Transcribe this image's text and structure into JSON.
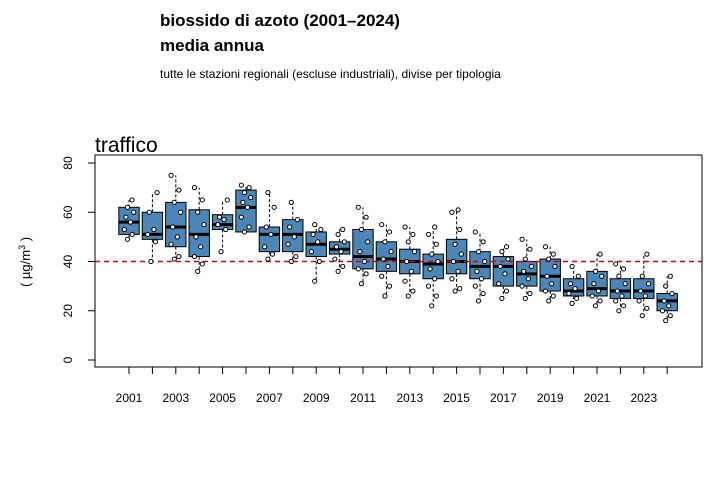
{
  "header": {
    "title_line1": "biossido di azoto (2001–2024)",
    "title_line2": "media annua",
    "subtitle": "tutte le stazioni regionali (escluse industriali), divise per tipologia"
  },
  "chart_data": {
    "type": "boxplot",
    "panel_title": "traffico",
    "ylabel": "( µg/m³ )",
    "ylabel_base": "( µg/m",
    "ylabel_sup": "3",
    "ylabel_end": " )",
    "ylim": [
      0,
      80
    ],
    "yticks": [
      0,
      20,
      40,
      60,
      80
    ],
    "xticks": [
      "2001",
      "2003",
      "2005",
      "2007",
      "2009",
      "2011",
      "2013",
      "2015",
      "2017",
      "2019",
      "2021",
      "2023"
    ],
    "reference_line": {
      "value": 40,
      "color": "#dd0000",
      "style": "dashed"
    },
    "box_color": "#4a86b8",
    "years": [
      2001,
      2002,
      2003,
      2004,
      2005,
      2006,
      2007,
      2008,
      2009,
      2010,
      2011,
      2012,
      2013,
      2014,
      2015,
      2016,
      2017,
      2018,
      2019,
      2020,
      2021,
      2022,
      2023,
      2024
    ],
    "boxes": [
      {
        "q1": 51,
        "median": 56,
        "q3": 62,
        "wlo": 49,
        "whi": 65
      },
      {
        "q1": 49,
        "median": 51,
        "q3": 60,
        "wlo": 40,
        "whi": 68
      },
      {
        "q1": 46,
        "median": 54,
        "q3": 64,
        "wlo": 41,
        "whi": 75
      },
      {
        "q1": 42,
        "median": 51,
        "q3": 61,
        "wlo": 36,
        "whi": 70
      },
      {
        "q1": 53,
        "median": 55,
        "q3": 59,
        "wlo": 44,
        "whi": 65
      },
      {
        "q1": 52,
        "median": 62,
        "q3": 69,
        "wlo": 52,
        "whi": 71
      },
      {
        "q1": 44,
        "median": 51,
        "q3": 54,
        "wlo": 41,
        "whi": 68
      },
      {
        "q1": 44,
        "median": 51,
        "q3": 57,
        "wlo": 40,
        "whi": 64
      },
      {
        "q1": 42,
        "median": 47,
        "q3": 52,
        "wlo": 32,
        "whi": 55
      },
      {
        "q1": 43,
        "median": 45,
        "q3": 48,
        "wlo": 36,
        "whi": 53
      },
      {
        "q1": 37,
        "median": 42,
        "q3": 53,
        "wlo": 31,
        "whi": 62
      },
      {
        "q1": 36,
        "median": 41,
        "q3": 48,
        "wlo": 26,
        "whi": 55
      },
      {
        "q1": 35,
        "median": 40,
        "q3": 45,
        "wlo": 26,
        "whi": 54
      },
      {
        "q1": 33,
        "median": 39,
        "q3": 43,
        "wlo": 22,
        "whi": 54
      },
      {
        "q1": 35,
        "median": 40,
        "q3": 49,
        "wlo": 28,
        "whi": 61
      },
      {
        "q1": 33,
        "median": 38,
        "q3": 44,
        "wlo": 24,
        "whi": 52
      },
      {
        "q1": 30,
        "median": 38,
        "q3": 42,
        "wlo": 25,
        "whi": 46
      },
      {
        "q1": 30,
        "median": 35,
        "q3": 40,
        "wlo": 25,
        "whi": 49
      },
      {
        "q1": 28,
        "median": 34,
        "q3": 41,
        "wlo": 24,
        "whi": 46
      },
      {
        "q1": 26,
        "median": 28,
        "q3": 33,
        "wlo": 23,
        "whi": 38
      },
      {
        "q1": 26,
        "median": 29,
        "q3": 36,
        "wlo": 22,
        "whi": 43
      },
      {
        "q1": 25,
        "median": 28,
        "q3": 33,
        "wlo": 20,
        "whi": 39
      },
      {
        "q1": 25,
        "median": 28,
        "q3": 33,
        "wlo": 18,
        "whi": 43
      },
      {
        "q1": 20,
        "median": 24,
        "q3": 27,
        "wlo": 16,
        "whi": 34
      }
    ],
    "points": [
      [
        49,
        51,
        53,
        56,
        58,
        60,
        62,
        65
      ],
      [
        40,
        48,
        51,
        53,
        60,
        68
      ],
      [
        41,
        42,
        47,
        50,
        54,
        60,
        64,
        69,
        75
      ],
      [
        36,
        39,
        42,
        46,
        50,
        55,
        60,
        65,
        70
      ],
      [
        44,
        53,
        55,
        57,
        58,
        65
      ],
      [
        52,
        54,
        58,
        62,
        64,
        66,
        68,
        70,
        71
      ],
      [
        41,
        43,
        46,
        51,
        54,
        62,
        68
      ],
      [
        40,
        42,
        47,
        50,
        54,
        57,
        64
      ],
      [
        32,
        40,
        44,
        48,
        51,
        53,
        55
      ],
      [
        36,
        38,
        41,
        44,
        46,
        48,
        51,
        53
      ],
      [
        31,
        35,
        37,
        40,
        44,
        48,
        53,
        58,
        62
      ],
      [
        26,
        30,
        34,
        38,
        41,
        44,
        48,
        52,
        55
      ],
      [
        26,
        28,
        32,
        36,
        40,
        44,
        48,
        51,
        54
      ],
      [
        22,
        26,
        30,
        33,
        37,
        40,
        43,
        47,
        51,
        54
      ],
      [
        28,
        29,
        33,
        36,
        40,
        43,
        47,
        53,
        60,
        61
      ],
      [
        24,
        27,
        30,
        33,
        36,
        40,
        44,
        48,
        52
      ],
      [
        25,
        28,
        31,
        35,
        38,
        41,
        44,
        46
      ],
      [
        25,
        27,
        30,
        33,
        36,
        38,
        41,
        45,
        49
      ],
      [
        24,
        26,
        28,
        31,
        34,
        38,
        41,
        43,
        46
      ],
      [
        23,
        25,
        27,
        29,
        31,
        34,
        38
      ],
      [
        22,
        24,
        26,
        28,
        31,
        34,
        36,
        43
      ],
      [
        20,
        22,
        24,
        26,
        28,
        31,
        34,
        37,
        39
      ],
      [
        18,
        21,
        24,
        26,
        28,
        31,
        34,
        43
      ],
      [
        16,
        18,
        20,
        22,
        24,
        27,
        30,
        34
      ]
    ]
  }
}
